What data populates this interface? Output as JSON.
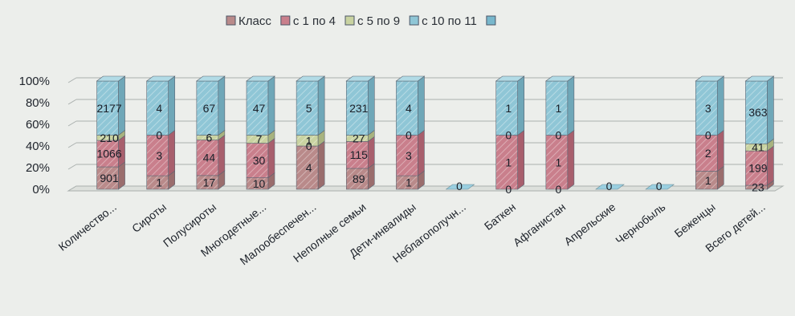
{
  "chart_data": {
    "type": "bar",
    "stacked": "percent",
    "style": "3d-column",
    "legend_position": "top",
    "categories": [
      "Количество...",
      "Сироты",
      "Полусироты",
      "Многодетные...",
      "Малообеспечен...",
      "Неполные семьи",
      "Дети-инвалиды",
      "Неблагополучн...",
      "Баткен",
      "Афганистан",
      "Апрельские",
      "Чернобыль",
      "Беженцы",
      "Всего детей..."
    ],
    "series": [
      {
        "name": "Класс",
        "values": [
          901,
          1,
          17,
          10,
          4,
          89,
          1,
          0,
          0,
          0,
          0,
          0,
          1,
          23
        ]
      },
      {
        "name": "с 1 по 4",
        "values": [
          1066,
          3,
          44,
          30,
          0,
          115,
          3,
          0,
          1,
          1,
          0,
          0,
          2,
          199
        ]
      },
      {
        "name": "с 5 по 9",
        "values": [
          210,
          0,
          6,
          7,
          1,
          27,
          0,
          0,
          0,
          0,
          0,
          0,
          0,
          41
        ]
      },
      {
        "name": "с 10 по 11",
        "values": [
          2177,
          4,
          67,
          47,
          5,
          231,
          4,
          0,
          1,
          1,
          0,
          0,
          3,
          363
        ]
      },
      {
        "name": "",
        "values": [
          0,
          0,
          0,
          0,
          0,
          0,
          0,
          0,
          0,
          0,
          0,
          0,
          0,
          0
        ]
      }
    ],
    "yticks": [
      "0%",
      "20%",
      "40%",
      "60%",
      "80%",
      "100%"
    ],
    "ylim": [
      0,
      100
    ],
    "grid": true,
    "colors": {
      "series": [
        "#b98a8a",
        "#c97f8c",
        "#c9d3a1",
        "#8fc6d6",
        "#78b7cc"
      ],
      "tops": [
        "#d3a9a9",
        "#dba0ab",
        "#dde6bd",
        "#b2dbe6",
        "#9acfe0"
      ],
      "sides": [
        "#9a6d6d",
        "#a85f6d",
        "#a8b37f",
        "#6fa7b8",
        "#5e9db2"
      ],
      "grid": "#aab0ae",
      "background": "#eceeeb"
    }
  }
}
